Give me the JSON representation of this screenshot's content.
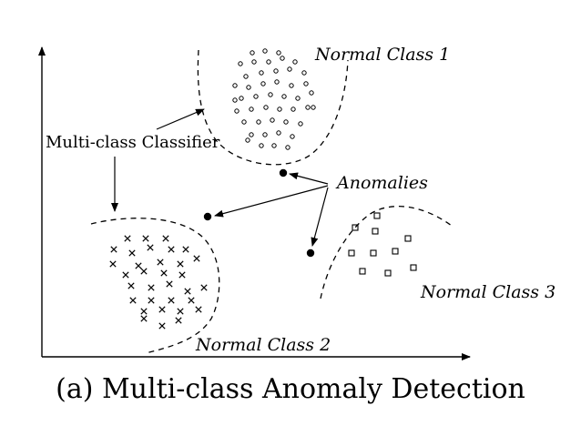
{
  "labels": {
    "normal_class_1": "Normal Class 1",
    "normal_class_2": "Normal Class 2",
    "normal_class_3": "Normal Class 3",
    "anomalies": "Anomalies",
    "classifier": "Multi-class Classifier"
  },
  "caption": "(a) Multi-class Anomaly Detection",
  "markers": {
    "class_1": "open-circle",
    "class_2": "cross",
    "class_3": "open-square",
    "anomaly": "filled-circle"
  }
}
